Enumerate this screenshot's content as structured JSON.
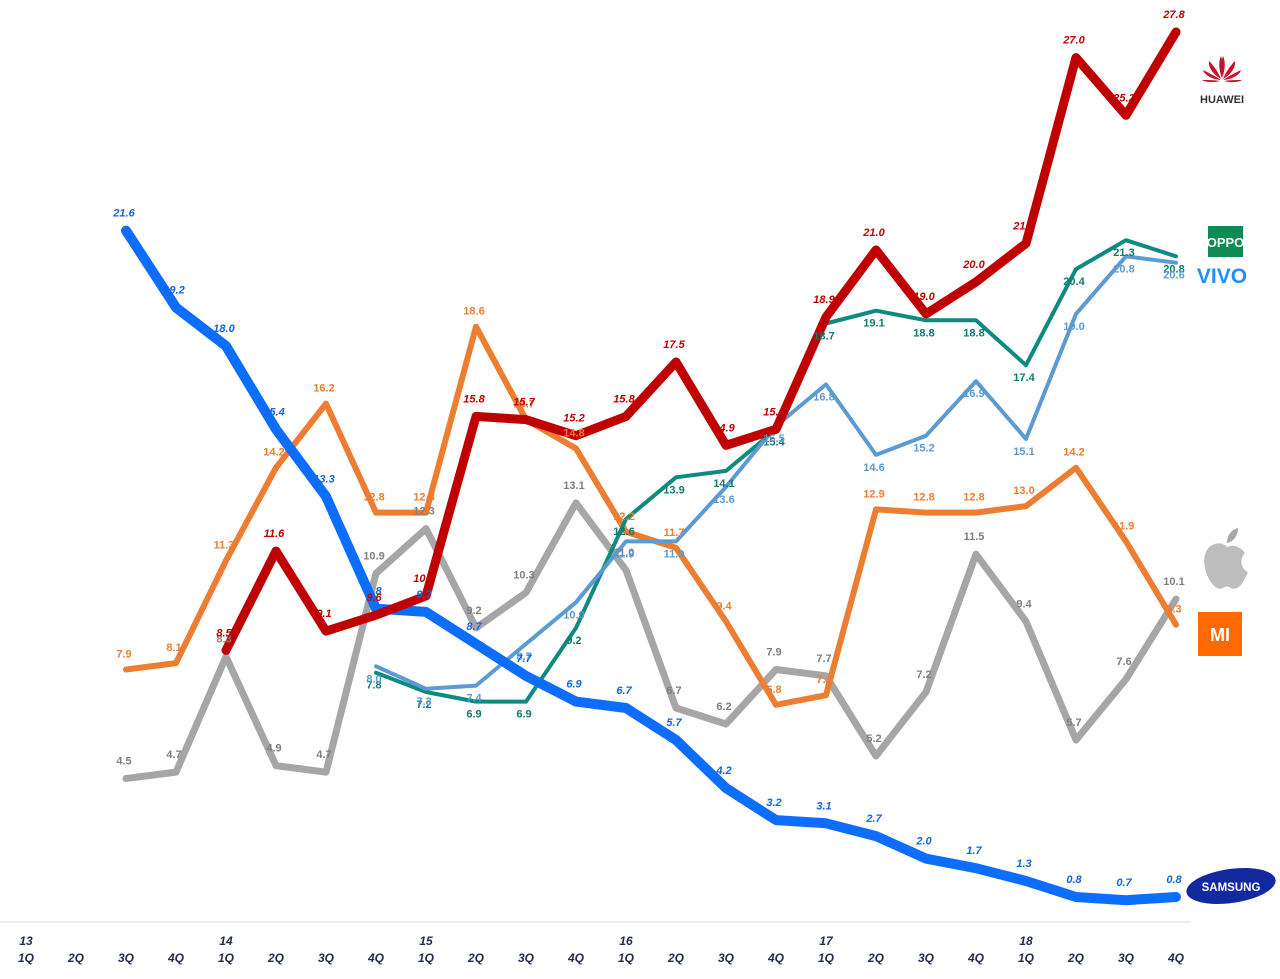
{
  "chart_data": {
    "type": "line",
    "title": "",
    "xlabel": "",
    "ylabel": "",
    "ylim": [
      0,
      28
    ],
    "grid": false,
    "legend": "right-side brand logos at line ends",
    "x": [
      {
        "q": "1Q",
        "year": "13"
      },
      {
        "q": "2Q",
        "year": ""
      },
      {
        "q": "3Q",
        "year": ""
      },
      {
        "q": "4Q",
        "year": ""
      },
      {
        "q": "1Q",
        "year": "14"
      },
      {
        "q": "2Q",
        "year": ""
      },
      {
        "q": "3Q",
        "year": ""
      },
      {
        "q": "4Q",
        "year": ""
      },
      {
        "q": "1Q",
        "year": "15"
      },
      {
        "q": "2Q",
        "year": ""
      },
      {
        "q": "3Q",
        "year": ""
      },
      {
        "q": "4Q",
        "year": ""
      },
      {
        "q": "1Q",
        "year": "16"
      },
      {
        "q": "2Q",
        "year": ""
      },
      {
        "q": "3Q",
        "year": ""
      },
      {
        "q": "4Q",
        "year": ""
      },
      {
        "q": "1Q",
        "year": "17"
      },
      {
        "q": "2Q",
        "year": ""
      },
      {
        "q": "3Q",
        "year": ""
      },
      {
        "q": "4Q",
        "year": ""
      },
      {
        "q": "1Q",
        "year": "18"
      },
      {
        "q": "2Q",
        "year": ""
      },
      {
        "q": "3Q",
        "year": ""
      },
      {
        "q": "4Q",
        "year": ""
      }
    ],
    "series": [
      {
        "key": "apple",
        "color": "#a6a6a6",
        "width": 7,
        "italic": false,
        "labelColor": "#7f7f7f",
        "values": [
          null,
          null,
          4.5,
          4.7,
          8.3,
          4.9,
          4.7,
          10.9,
          12.3,
          9.2,
          10.3,
          13.1,
          11.0,
          6.7,
          6.2,
          7.9,
          7.7,
          5.2,
          7.2,
          11.5,
          9.4,
          5.7,
          7.6,
          10.1
        ]
      },
      {
        "key": "xiaomi",
        "color": "#ed7d31",
        "width": 6,
        "italic": false,
        "labelColor": "#ed7d31",
        "values": [
          null,
          null,
          7.9,
          8.1,
          11.3,
          14.2,
          16.2,
          12.8,
          12.8,
          18.6,
          15.7,
          14.8,
          12.2,
          11.7,
          9.4,
          6.8,
          7.1,
          12.9,
          12.8,
          12.8,
          13.0,
          14.2,
          11.9,
          9.3
        ]
      },
      {
        "key": "oppo",
        "color": "#0f8a7e",
        "width": 4,
        "italic": false,
        "labelColor": "#0f7a6e",
        "values": [
          null,
          null,
          null,
          null,
          null,
          null,
          null,
          7.8,
          7.2,
          6.9,
          6.9,
          9.2,
          12.6,
          13.9,
          14.1,
          15.4,
          18.7,
          19.1,
          18.8,
          18.8,
          17.4,
          20.4,
          21.3,
          20.8
        ]
      },
      {
        "key": "vivo",
        "color": "#5b9bd5",
        "width": 4,
        "italic": false,
        "labelColor": "#5b9bd5",
        "values": [
          null,
          null,
          null,
          null,
          null,
          null,
          null,
          8.0,
          7.3,
          7.4,
          8.7,
          10.0,
          11.9,
          11.9,
          13.6,
          15.5,
          16.8,
          14.6,
          15.2,
          16.9,
          15.1,
          19.0,
          20.8,
          20.6
        ]
      },
      {
        "key": "samsung",
        "color": "#0d6efd",
        "width": 10,
        "italic": true,
        "labelColor": "#1565e0",
        "values": [
          null,
          null,
          21.6,
          19.2,
          18.0,
          15.4,
          13.3,
          9.8,
          9.7,
          8.7,
          7.7,
          6.9,
          6.7,
          5.7,
          4.2,
          3.2,
          3.1,
          2.7,
          2.0,
          1.7,
          1.3,
          0.8,
          0.7,
          0.8
        ]
      },
      {
        "key": "huawei",
        "color": "#c00000",
        "width": 9,
        "italic": true,
        "labelColor": "#c00000",
        "values": [
          null,
          null,
          null,
          null,
          8.5,
          11.6,
          9.1,
          9.6,
          10.2,
          15.8,
          15.7,
          15.2,
          15.8,
          17.5,
          14.9,
          15.4,
          18.9,
          21.0,
          19.0,
          20.0,
          21.2,
          27.0,
          25.2,
          27.8
        ]
      }
    ]
  },
  "logos": {
    "huawei": {
      "text": "HUAWEI",
      "color": "#c8102e"
    },
    "oppo": {
      "text": "OPPO",
      "color": "#0f8a52"
    },
    "vivo": {
      "text": "VIVO",
      "color": "#1e90ff"
    },
    "apple": {
      "text": "",
      "color": "#b8b8b8"
    },
    "xiaomi": {
      "text": "MI",
      "color": "#ff6900"
    },
    "samsung": {
      "text": "SAMSUNG",
      "color": "#1428a0"
    }
  }
}
